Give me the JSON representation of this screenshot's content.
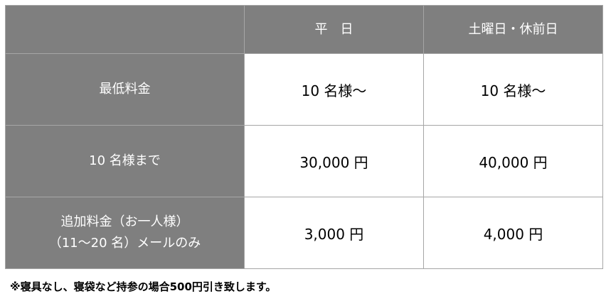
{
  "header": {
    "corner": "",
    "weekday": "平　日",
    "weekend": "土曜日・休前日"
  },
  "rows": [
    {
      "label": "最低料金",
      "label2": "",
      "weekday": "10 名様～",
      "weekend": "10 名様～"
    },
    {
      "label": "10 名様まで",
      "label2": "",
      "weekday": "30,000 円",
      "weekend": "40,000 円"
    },
    {
      "label": "追加料金（お一人様）",
      "label2": "（11～20 名）メールのみ",
      "weekday": "3,000 円",
      "weekend": "4,000 円"
    }
  ],
  "note": "※寝具なし、寝袋など持参の場合500円引き致します。",
  "colors": {
    "header_bg": "#7f7f7f",
    "border": "#a6a6a6"
  }
}
